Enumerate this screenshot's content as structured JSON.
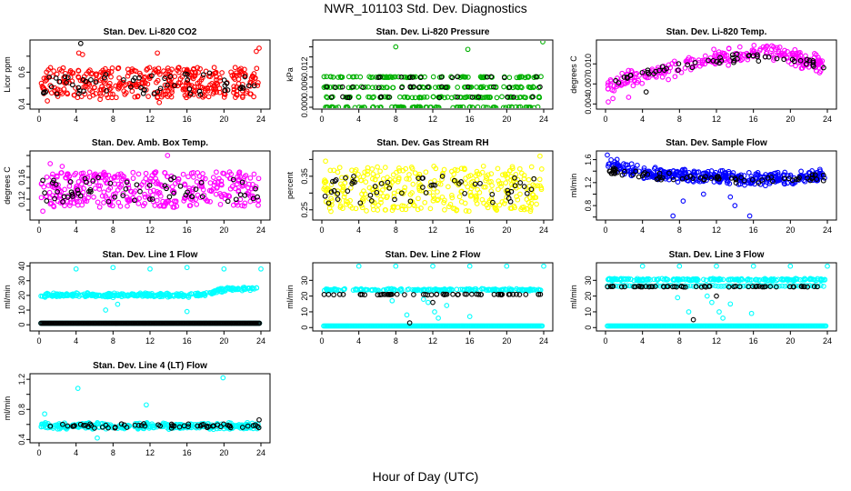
{
  "page": {
    "title": "NWR_101103  Std. Dev. Diagnostics",
    "xaxis_title": "Hour of Day (UTC)"
  },
  "chart_data": [
    {
      "type": "scatter",
      "title": "Stan. Dev. Li-820 CO2",
      "ylabel": "Licor ppm",
      "xlim": [
        0,
        24
      ],
      "xticks": [
        0,
        4,
        8,
        12,
        16,
        20,
        24
      ],
      "ylim": [
        0.38,
        0.79
      ],
      "yticks": [
        0.4,
        0.5,
        0.6,
        0.7
      ],
      "ytick_labels": [
        "0.4",
        "",
        "0.6",
        ""
      ],
      "series": [
        {
          "color": "#ff0000",
          "band": [
            0.44,
            0.63
          ],
          "n": 380,
          "extras": [
            [
              4.3,
              0.72
            ],
            [
              4.7,
              0.71
            ],
            [
              23.5,
              0.73
            ],
            [
              23.8,
              0.75
            ],
            [
              6.6,
              0.43
            ],
            [
              13.0,
              0.41
            ],
            [
              0.9,
              0.42
            ],
            [
              12.8,
              0.72
            ]
          ]
        },
        {
          "color": "#000000",
          "band": [
            0.46,
            0.6
          ],
          "n": 60,
          "extras": [
            [
              4.5,
              0.78
            ]
          ]
        }
      ]
    },
    {
      "type": "scatter",
      "title": "Stan. Dev. Li-820 Pressure",
      "ylabel": "kPa",
      "xlim": [
        0,
        24
      ],
      "xticks": [
        0,
        4,
        8,
        12,
        16,
        20,
        24
      ],
      "ylim": [
        0,
        0.013
      ],
      "yticks": [
        0,
        0.002,
        0.004,
        0.006,
        0.008,
        0.01,
        0.012
      ],
      "ytick_labels": [
        "0.000",
        "",
        "0.006",
        "",
        "0.012",
        "",
        ""
      ],
      "series": [
        {
          "color": "#00b000",
          "levels": [
            0,
            0.002,
            0.004,
            0.006
          ],
          "n": 360,
          "extras": [
            [
              8.0,
              0.012
            ],
            [
              15.8,
              0.0115
            ],
            [
              23.9,
              0.013
            ]
          ]
        },
        {
          "color": "#000000",
          "levels": [
            0.002,
            0.004,
            0.006
          ],
          "n": 45,
          "extras": []
        }
      ]
    },
    {
      "type": "scatter",
      "title": "Stan. Dev. Li-820 Temp.",
      "ylabel": "degrees C",
      "xlim": [
        0,
        24
      ],
      "xticks": [
        0,
        4,
        8,
        12,
        16,
        20,
        24
      ],
      "ylim": [
        0.0035,
        0.0133
      ],
      "yticks": [
        0.004,
        0.007,
        0.01
      ],
      "ytick_labels": [
        "0.004",
        "0.007",
        "0.010"
      ],
      "series": [
        {
          "color": "#ff00ff",
          "trend": [
            [
              0,
              0.0065
            ],
            [
              4,
              0.0082
            ],
            [
              8,
              0.0095
            ],
            [
              12,
              0.0108
            ],
            [
              16,
              0.0118
            ],
            [
              20,
              0.011
            ],
            [
              24,
              0.0098
            ]
          ],
          "spread": 0.0016,
          "n": 260,
          "extras": [
            [
              0.3,
              0.0043
            ],
            [
              0.8,
              0.0048
            ],
            [
              2.5,
              0.005
            ],
            [
              17.4,
              0.0125
            ],
            [
              18.0,
              0.0127
            ]
          ]
        },
        {
          "color": "#000000",
          "trend": [
            [
              0,
              0.0072
            ],
            [
              4,
              0.0085
            ],
            [
              8,
              0.0095
            ],
            [
              12,
              0.0105
            ],
            [
              16,
              0.0112
            ],
            [
              20,
              0.0106
            ],
            [
              24,
              0.0096
            ]
          ],
          "spread": 0.0008,
          "n": 55,
          "extras": [
            [
              4.4,
              0.0058
            ]
          ]
        }
      ]
    },
    {
      "type": "scatter",
      "title": "Stan. Dev. Amb. Box Temp.",
      "ylabel": "degrees C",
      "xlim": [
        0,
        24
      ],
      "xticks": [
        0,
        4,
        8,
        12,
        16,
        20,
        24
      ],
      "ylim": [
        0.085,
        0.205
      ],
      "yticks": [
        0.1,
        0.12,
        0.14,
        0.16,
        0.18,
        0.2
      ],
      "ytick_labels": [
        "",
        "0.12",
        "",
        "0.16",
        "",
        ""
      ],
      "series": [
        {
          "color": "#ff00ff",
          "band": [
            0.105,
            0.17
          ],
          "n": 380,
          "extras": [
            [
              13.9,
              0.2
            ],
            [
              0.4,
              0.098
            ],
            [
              1.2,
              0.185
            ],
            [
              2.5,
              0.18
            ]
          ]
        },
        {
          "color": "#000000",
          "band": [
            0.115,
            0.16
          ],
          "n": 60,
          "extras": []
        }
      ]
    },
    {
      "type": "scatter",
      "title": "Stan. Dev. Gas Stream RH",
      "ylabel": "percent",
      "xlim": [
        0,
        24
      ],
      "xticks": [
        0,
        4,
        8,
        12,
        16,
        20,
        24
      ],
      "ylim": [
        0.225,
        0.42
      ],
      "yticks": [
        0.25,
        0.3,
        0.35,
        0.4
      ],
      "ytick_labels": [
        "0.25",
        "",
        "0.35",
        ""
      ],
      "series": [
        {
          "color": "#ffff00",
          "band": [
            0.245,
            0.38
          ],
          "n": 360,
          "extras": [
            [
              23.6,
              0.41
            ],
            [
              0.4,
              0.395
            ]
          ]
        },
        {
          "color": "#000000",
          "band": [
            0.27,
            0.35
          ],
          "n": 55,
          "extras": []
        }
      ]
    },
    {
      "type": "scatter",
      "title": "Stan. Dev. Sample Flow",
      "ylabel": "ml/min",
      "xlim": [
        0,
        24
      ],
      "xticks": [
        0,
        4,
        8,
        12,
        16,
        20,
        24
      ],
      "ylim": [
        0.58,
        1.72
      ],
      "yticks": [
        0.6,
        0.8,
        1.0,
        1.2,
        1.4,
        1.6
      ],
      "ytick_labels": [
        "",
        "0.8",
        "",
        "1.2",
        "",
        "1.6"
      ],
      "series": [
        {
          "color": "#0000ff",
          "trend": [
            [
              0,
              1.52
            ],
            [
              4,
              1.38
            ],
            [
              8,
              1.33
            ],
            [
              12,
              1.3
            ],
            [
              16,
              1.26
            ],
            [
              20,
              1.28
            ],
            [
              24,
              1.32
            ]
          ],
          "spread": 0.13,
          "n": 380,
          "extras": [
            [
              0.2,
              1.68
            ],
            [
              7.3,
              0.62
            ],
            [
              8.4,
              0.88
            ],
            [
              13.5,
              0.95
            ],
            [
              15.6,
              0.62
            ],
            [
              14.0,
              0.8
            ],
            [
              10.6,
              1.0
            ]
          ]
        },
        {
          "color": "#000000",
          "trend": [
            [
              0,
              1.42
            ],
            [
              4,
              1.33
            ],
            [
              8,
              1.3
            ],
            [
              12,
              1.27
            ],
            [
              16,
              1.24
            ],
            [
              20,
              1.26
            ],
            [
              24,
              1.3
            ]
          ],
          "spread": 0.07,
          "n": 70,
          "extras": []
        }
      ]
    },
    {
      "type": "scatter",
      "title": "Stan. Dev. Line 1 Flow",
      "ylabel": "ml/min",
      "xlim": [
        0,
        24
      ],
      "xticks": [
        0,
        4,
        8,
        12,
        16,
        20,
        24
      ],
      "ylim": [
        -3,
        41
      ],
      "yticks": [
        0,
        10,
        20,
        30,
        40
      ],
      "ytick_labels": [
        "0",
        "10",
        "20",
        "30",
        "40"
      ],
      "series": [
        {
          "color": "#00ffff",
          "trend": [
            [
              0,
              20
            ],
            [
              4,
              20.5
            ],
            [
              8,
              20
            ],
            [
              12,
              20.5
            ],
            [
              16,
              20
            ],
            [
              18,
              21
            ],
            [
              20,
              24
            ],
            [
              24,
              25
            ]
          ],
          "spread": 1.6,
          "n": 300,
          "extras": [
            [
              4.0,
              38
            ],
            [
              8.0,
              39
            ],
            [
              12.0,
              38
            ],
            [
              16.0,
              39
            ],
            [
              20.0,
              38
            ],
            [
              24.0,
              38
            ],
            [
              7.2,
              10
            ],
            [
              16.0,
              9
            ],
            [
              8.5,
              14
            ]
          ],
          "line": [
            0.2,
            23.9,
            1
          ]
        },
        {
          "color": "#000000",
          "line": [
            0.2,
            23.9,
            1
          ],
          "n": 0,
          "extras": []
        }
      ]
    },
    {
      "type": "scatter",
      "title": "Stan. Dev. Line 2 Flow",
      "ylabel": "ml/min",
      "xlim": [
        0,
        24
      ],
      "xticks": [
        0,
        4,
        8,
        12,
        16,
        20,
        24
      ],
      "ylim": [
        -1,
        40
      ],
      "yticks": [
        0,
        10,
        20,
        30
      ],
      "ytick_labels": [
        "0",
        "10",
        "20",
        "30"
      ],
      "series": [
        {
          "color": "#00ffff",
          "trend": [
            [
              0,
              24
            ],
            [
              24,
              24
            ]
          ],
          "spread": 0.8,
          "n": 200,
          "extras": [
            [
              4.0,
              39
            ],
            [
              8.0,
              39
            ],
            [
              12.0,
              39
            ],
            [
              16.0,
              39
            ],
            [
              20.0,
              39
            ],
            [
              24.0,
              39
            ],
            [
              11.5,
              16
            ],
            [
              12.2,
              10
            ],
            [
              12.6,
              6
            ],
            [
              9.2,
              8
            ],
            [
              13.5,
              14
            ],
            [
              16.0,
              7
            ],
            [
              11.0,
              18
            ],
            [
              7.6,
              17
            ]
          ],
          "line": [
            0.2,
            23.9,
            1
          ]
        },
        {
          "color": "#000000",
          "trend": [
            [
              0,
              21
            ],
            [
              24,
              21
            ]
          ],
          "spread": 0.3,
          "n": 60,
          "extras": [
            [
              9.5,
              3
            ],
            [
              12.0,
              16
            ]
          ]
        }
      ]
    },
    {
      "type": "scatter",
      "title": "Stan. Dev. Line 3 Flow",
      "ylabel": "ml/min",
      "xlim": [
        0,
        24
      ],
      "xticks": [
        0,
        4,
        8,
        12,
        16,
        20,
        24
      ],
      "ylim": [
        -1,
        40
      ],
      "yticks": [
        0,
        10,
        20,
        30
      ],
      "ytick_labels": [
        "0",
        "10",
        "20",
        "30"
      ],
      "series": [
        {
          "color": "#00ffff",
          "trend": [
            [
              0,
              30.5
            ],
            [
              24,
              30.5
            ]
          ],
          "spread": 0.8,
          "n": 200,
          "extras": [
            [
              4.0,
              39
            ],
            [
              8.0,
              39
            ],
            [
              12.0,
              39
            ],
            [
              16.0,
              39
            ],
            [
              20.0,
              39
            ],
            [
              24.0,
              39
            ],
            [
              11.5,
              16
            ],
            [
              12.3,
              10
            ],
            [
              12.7,
              6
            ],
            [
              9.0,
              10
            ],
            [
              13.5,
              15
            ],
            [
              15.8,
              9
            ],
            [
              11.0,
              20
            ],
            [
              7.8,
              19
            ]
          ],
          "line": [
            0.2,
            23.9,
            1
          ],
          "line2": [
            0.2,
            23.9,
            26.5
          ]
        },
        {
          "color": "#000000",
          "trend": [
            [
              0,
              26
            ],
            [
              24,
              26
            ]
          ],
          "spread": 0.3,
          "n": 60,
          "extras": [
            [
              9.5,
              5
            ],
            [
              12.0,
              20
            ]
          ]
        }
      ]
    },
    {
      "type": "scatter",
      "title": "Stan. Dev. Line 4 (LT) Flow",
      "ylabel": "ml/min",
      "xlim": [
        0,
        24
      ],
      "xticks": [
        0,
        4,
        8,
        12,
        16,
        20,
        24
      ],
      "ylim": [
        0.38,
        1.25
      ],
      "yticks": [
        0.4,
        0.6,
        0.8,
        1.0,
        1.2
      ],
      "ytick_labels": [
        "0.4",
        "",
        "0.8",
        "",
        "1.2"
      ],
      "series": [
        {
          "color": "#00ffff",
          "trend": [
            [
              0,
              0.58
            ],
            [
              24,
              0.58
            ]
          ],
          "spread": 0.05,
          "n": 340,
          "extras": [
            [
              4.2,
              1.08
            ],
            [
              19.9,
              1.22
            ],
            [
              11.6,
              0.86
            ],
            [
              0.6,
              0.74
            ],
            [
              6.3,
              0.42
            ]
          ]
        },
        {
          "color": "#000000",
          "trend": [
            [
              0,
              0.58
            ],
            [
              24,
              0.58
            ]
          ],
          "spread": 0.04,
          "n": 60,
          "extras": [
            [
              23.8,
              0.66
            ]
          ]
        }
      ]
    }
  ]
}
